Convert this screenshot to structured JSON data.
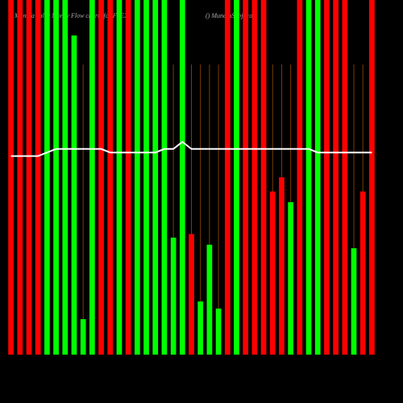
{
  "chart_data": {
    "type": "bar",
    "title": "Munafa value Money Flow charts for FLEX",
    "subtitle": "() MunafaSabji.com",
    "categories": [
      null,
      null,
      null,
      null,
      null,
      null,
      null,
      null,
      null,
      null,
      null,
      null,
      null,
      null,
      null,
      null,
      null,
      null,
      null,
      null,
      null,
      null,
      null,
      null,
      null,
      null,
      null,
      null,
      null,
      null,
      null,
      null,
      null,
      null,
      null,
      null,
      null,
      null,
      null,
      null,
      null
    ],
    "values": [
      100,
      100,
      100,
      100,
      100,
      100,
      100,
      90,
      10,
      100,
      100,
      100,
      100,
      100,
      100,
      100,
      100,
      100,
      33,
      100,
      34,
      15,
      31,
      13,
      100,
      100,
      100,
      100,
      100,
      46,
      50,
      43,
      100,
      100,
      100,
      100,
      100,
      100,
      30,
      46,
      100
    ],
    "colors": [
      "#ff0000",
      "#ff0000",
      "#ff0000",
      "#ff0000",
      "#00ff00",
      "#00ff00",
      "#00ff00",
      "#00ff00",
      "#00ff00",
      "#00ff00",
      "#ff0000",
      "#ff0000",
      "#00ff00",
      "#ff0000",
      "#00ff00",
      "#00ff00",
      "#00ff00",
      "#00ff00",
      "#00ff00",
      "#00ff00",
      "#ff0000",
      "#00ff00",
      "#00ff00",
      "#00ff00",
      "#ff0000",
      "#00ff00",
      "#ff0000",
      "#ff0000",
      "#ff0000",
      "#ff0000",
      "#ff0000",
      "#00ff00",
      "#ff0000",
      "#00ff00",
      "#00ff00",
      "#ff0000",
      "#ff0000",
      "#ff0000",
      "#00ff00",
      "#ff0000",
      "#ff0000"
    ],
    "line": {
      "color": "#ffffff",
      "values": [
        56,
        56,
        56,
        56,
        57,
        58,
        58,
        58,
        58,
        58,
        58,
        57,
        57,
        57,
        57,
        57,
        57,
        58,
        58,
        60,
        58,
        58,
        58,
        58,
        58,
        58,
        58,
        58,
        58,
        58,
        58,
        58,
        58,
        58,
        57,
        57,
        57,
        57,
        57,
        57,
        57
      ]
    },
    "ylim": [
      0,
      100
    ]
  }
}
